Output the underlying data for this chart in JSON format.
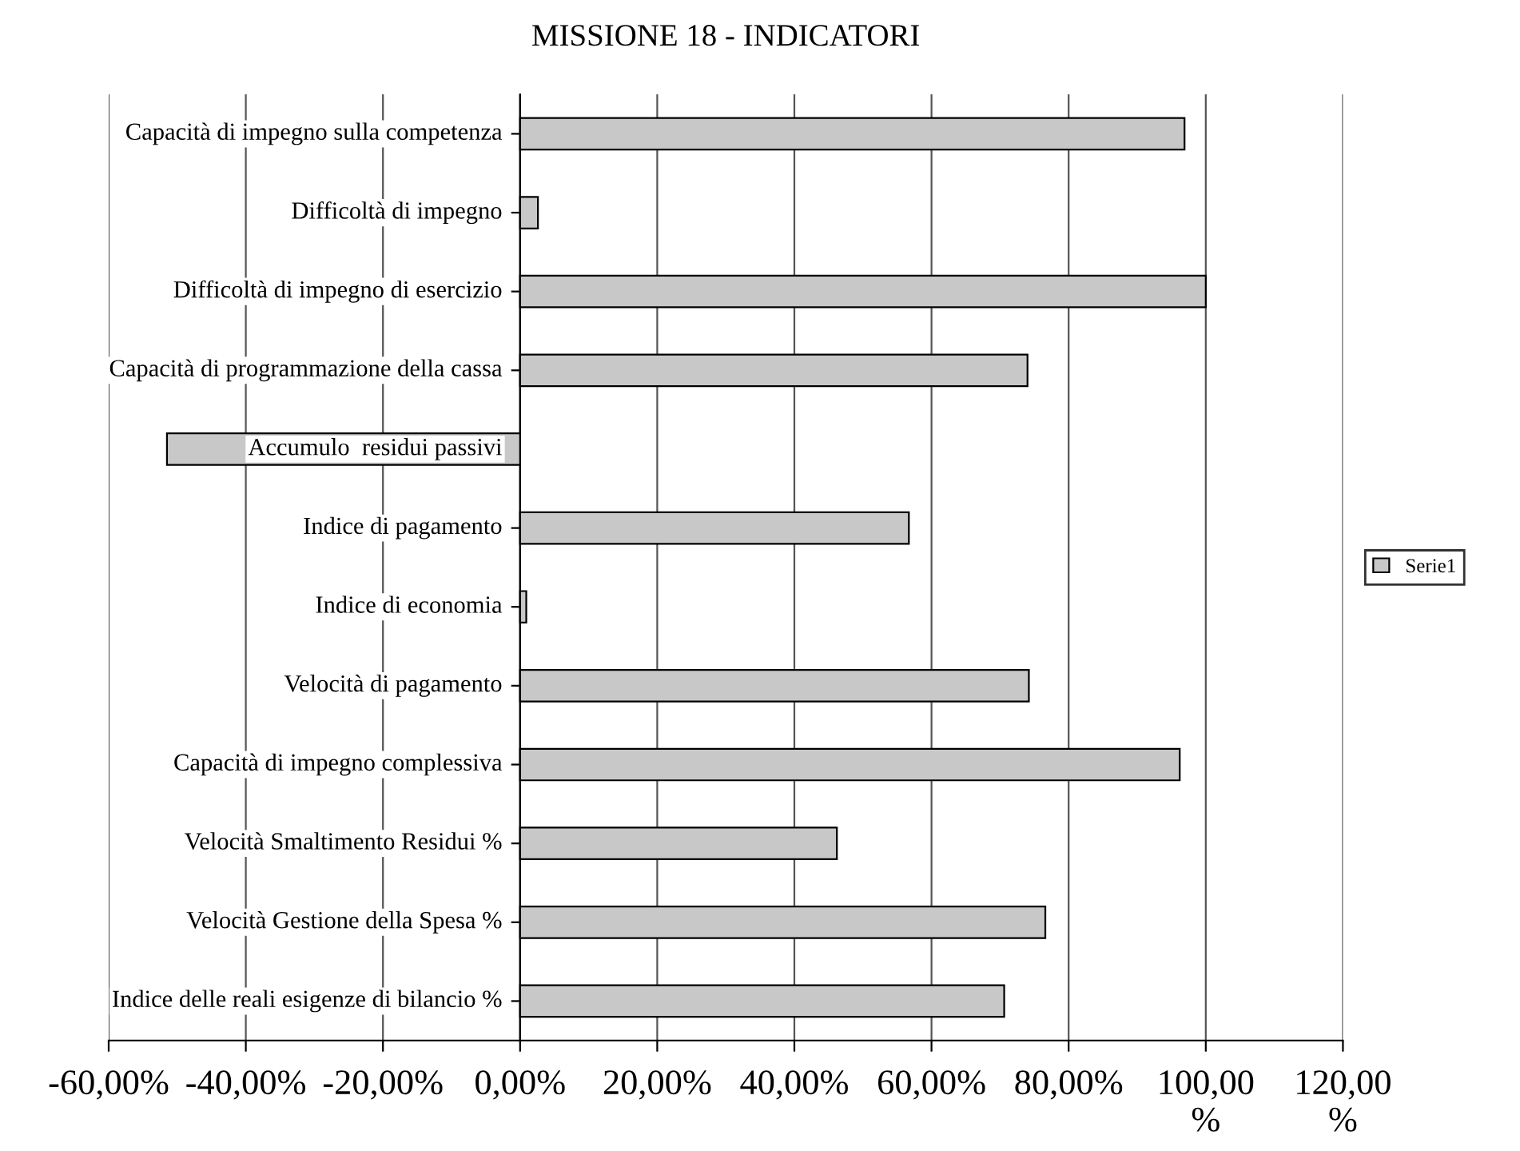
{
  "chart_data": {
    "type": "bar",
    "orientation": "horizontal",
    "title": "MISSIONE 18 - INDICATORI",
    "categories": [
      "Capacità di impegno sulla competenza",
      "Difficoltà di impegno",
      "Difficoltà di impegno di esercizio",
      "Capacità di programmazione della cassa",
      "Accumulo  residui passivi",
      "Indice di pagamento",
      "Indice di economia",
      "Velocità di pagamento",
      "Capacità di impegno complessiva",
      "Velocità Smaltimento Residui %",
      "Velocità Gestione della Spesa %",
      "Indice delle reali esigenze di bilancio %"
    ],
    "series": [
      {
        "name": "Serie1",
        "color": "#c8c8c8",
        "values": [
          96.9,
          2.6,
          100,
          74.0,
          -51.5,
          56.7,
          0.9,
          74.2,
          96.2,
          46.2,
          76.6,
          70.6
        ]
      }
    ],
    "xlim": [
      -60,
      120
    ],
    "xticks": [
      {
        "value": -60,
        "label": "-60,00%"
      },
      {
        "value": -40,
        "label": "-40,00%"
      },
      {
        "value": -20,
        "label": "-20,00%"
      },
      {
        "value": 0,
        "label": "0,00%"
      },
      {
        "value": 20,
        "label": "20,00%"
      },
      {
        "value": 40,
        "label": "40,00%"
      },
      {
        "value": 60,
        "label": "60,00%"
      },
      {
        "value": 80,
        "label": "80,00%"
      },
      {
        "value": 100,
        "label": "100,00\n%"
      },
      {
        "value": 120,
        "label": "120,00\n%"
      }
    ],
    "grid": "x",
    "legend": "right"
  }
}
